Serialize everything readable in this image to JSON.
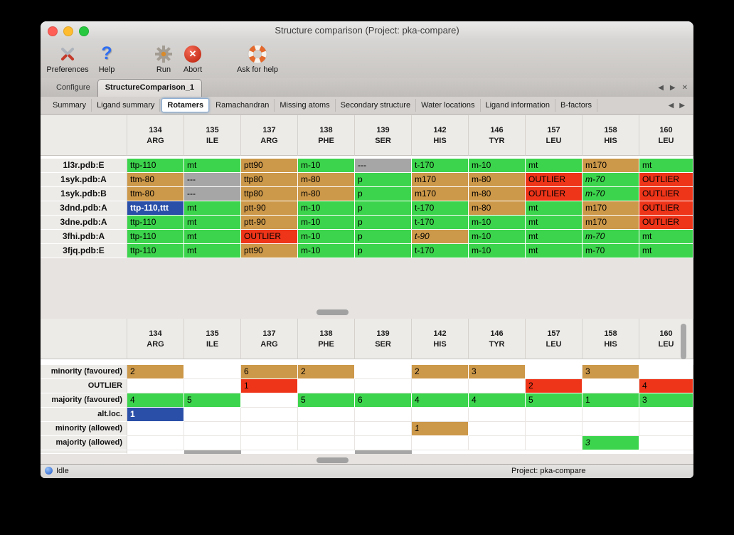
{
  "window": {
    "title": "Structure comparison (Project: pka-compare)",
    "traffic_colors": {
      "close": "#ff5f57",
      "minimize": "#febc2e",
      "zoom": "#28c840"
    }
  },
  "toolbar": [
    {
      "label": "Preferences",
      "name": "preferences",
      "icon": "preferences-tools-icon"
    },
    {
      "label": "Help",
      "name": "help",
      "icon": "help-question-icon"
    },
    {
      "label": "Run",
      "name": "run",
      "icon": "run-gear-icon"
    },
    {
      "label": "Abort",
      "name": "abort",
      "icon": "abort-cross-icon"
    },
    {
      "label": "Ask for help",
      "name": "ask-for-help",
      "icon": "lifebuoy-icon"
    }
  ],
  "tabs": [
    {
      "label": "Configure",
      "active": false
    },
    {
      "label": "StructureComparison_1",
      "active": true
    }
  ],
  "nav": {
    "prev": "◀",
    "next": "▶",
    "close": "✕"
  },
  "subtabs": [
    "Summary",
    "Ligand summary",
    "Rotamers",
    "Ramachandran",
    "Missing atoms",
    "Secondary structure",
    "Water locations",
    "Ligand information",
    "B-factors"
  ],
  "active_subtab": "Rotamers",
  "legend_colors": {
    "majority": "#3cd44c",
    "minority": "#cc9849",
    "outlier": "#ee3419",
    "missing": "#a6a6a6",
    "altloc": "#2a4fa8"
  },
  "columns": [
    [
      "134",
      "ARG"
    ],
    [
      "135",
      "ILE"
    ],
    [
      "137",
      "ARG"
    ],
    [
      "138",
      "PHE"
    ],
    [
      "139",
      "SER"
    ],
    [
      "142",
      "HIS"
    ],
    [
      "146",
      "TYR"
    ],
    [
      "157",
      "LEU"
    ],
    [
      "158",
      "HIS"
    ],
    [
      "160",
      "LEU"
    ]
  ],
  "structures": [
    {
      "name": "1l3r.pdb:E",
      "cells": [
        {
          "t": "ttp-110",
          "c": "majority"
        },
        {
          "t": "mt",
          "c": "majority"
        },
        {
          "t": "ptt90",
          "c": "minority"
        },
        {
          "t": "m-10",
          "c": "majority"
        },
        {
          "t": "---",
          "c": "missing"
        },
        {
          "t": "t-170",
          "c": "majority"
        },
        {
          "t": "m-10",
          "c": "majority"
        },
        {
          "t": "mt",
          "c": "majority"
        },
        {
          "t": "m170",
          "c": "minority"
        },
        {
          "t": "mt",
          "c": "majority"
        }
      ]
    },
    {
      "name": "1syk.pdb:A",
      "cells": [
        {
          "t": "ttm-80",
          "c": "minority"
        },
        {
          "t": "---",
          "c": "missing"
        },
        {
          "t": "ttp80",
          "c": "minority"
        },
        {
          "t": "m-80",
          "c": "minority"
        },
        {
          "t": "p",
          "c": "majority"
        },
        {
          "t": "m170",
          "c": "minority"
        },
        {
          "t": "m-80",
          "c": "minority"
        },
        {
          "t": "OUTLIER",
          "c": "outlier"
        },
        {
          "t": "m-70",
          "c": "majority",
          "i": true
        },
        {
          "t": "OUTLIER",
          "c": "outlier"
        }
      ]
    },
    {
      "name": "1syk.pdb:B",
      "cells": [
        {
          "t": "ttm-80",
          "c": "minority"
        },
        {
          "t": "---",
          "c": "missing"
        },
        {
          "t": "ttp80",
          "c": "minority"
        },
        {
          "t": "m-80",
          "c": "minority"
        },
        {
          "t": "p",
          "c": "majority"
        },
        {
          "t": "m170",
          "c": "minority"
        },
        {
          "t": "m-80",
          "c": "minority"
        },
        {
          "t": "OUTLIER",
          "c": "outlier"
        },
        {
          "t": "m-70",
          "c": "majority",
          "i": true
        },
        {
          "t": "OUTLIER",
          "c": "outlier"
        }
      ]
    },
    {
      "name": "3dnd.pdb:A",
      "cells": [
        {
          "t": "ttp-110,ttt",
          "c": "altloc"
        },
        {
          "t": "mt",
          "c": "majority"
        },
        {
          "t": "ptt-90",
          "c": "minority"
        },
        {
          "t": "m-10",
          "c": "majority"
        },
        {
          "t": "p",
          "c": "majority"
        },
        {
          "t": "t-170",
          "c": "majority"
        },
        {
          "t": "m-80",
          "c": "minority"
        },
        {
          "t": "mt",
          "c": "majority"
        },
        {
          "t": "m170",
          "c": "minority"
        },
        {
          "t": "OUTLIER",
          "c": "outlier"
        }
      ]
    },
    {
      "name": "3dne.pdb:A",
      "cells": [
        {
          "t": "ttp-110",
          "c": "majority"
        },
        {
          "t": "mt",
          "c": "majority"
        },
        {
          "t": "ptt-90",
          "c": "minority"
        },
        {
          "t": "m-10",
          "c": "majority"
        },
        {
          "t": "p",
          "c": "majority"
        },
        {
          "t": "t-170",
          "c": "majority"
        },
        {
          "t": "m-10",
          "c": "majority"
        },
        {
          "t": "mt",
          "c": "majority"
        },
        {
          "t": "m170",
          "c": "minority"
        },
        {
          "t": "OUTLIER",
          "c": "outlier"
        }
      ]
    },
    {
      "name": "3fhi.pdb:A",
      "cells": [
        {
          "t": "ttp-110",
          "c": "majority"
        },
        {
          "t": "mt",
          "c": "majority"
        },
        {
          "t": "OUTLIER",
          "c": "outlier"
        },
        {
          "t": "m-10",
          "c": "majority"
        },
        {
          "t": "p",
          "c": "majority"
        },
        {
          "t": "t-90",
          "c": "minority",
          "i": true
        },
        {
          "t": "m-10",
          "c": "majority"
        },
        {
          "t": "mt",
          "c": "majority"
        },
        {
          "t": "m-70",
          "c": "majority",
          "i": true
        },
        {
          "t": "mt",
          "c": "majority"
        }
      ]
    },
    {
      "name": "3fjq.pdb:E",
      "cells": [
        {
          "t": "ttp-110",
          "c": "majority"
        },
        {
          "t": "mt",
          "c": "majority"
        },
        {
          "t": "ptt90",
          "c": "minority"
        },
        {
          "t": "m-10",
          "c": "majority"
        },
        {
          "t": "p",
          "c": "majority"
        },
        {
          "t": "t-170",
          "c": "majority"
        },
        {
          "t": "m-10",
          "c": "majority"
        },
        {
          "t": "mt",
          "c": "majority"
        },
        {
          "t": "m-70",
          "c": "majority"
        },
        {
          "t": "mt",
          "c": "majority"
        }
      ]
    }
  ],
  "summary": [
    {
      "name": "minority (favoured)",
      "cells": [
        {
          "t": "2",
          "c": "minority"
        },
        null,
        {
          "t": "6",
          "c": "minority"
        },
        {
          "t": "2",
          "c": "minority"
        },
        null,
        {
          "t": "2",
          "c": "minority"
        },
        {
          "t": "3",
          "c": "minority"
        },
        null,
        {
          "t": "3",
          "c": "minority"
        },
        null
      ]
    },
    {
      "name": "OUTLIER",
      "cells": [
        null,
        null,
        {
          "t": "1",
          "c": "outlier"
        },
        null,
        null,
        null,
        null,
        {
          "t": "2",
          "c": "outlier"
        },
        null,
        {
          "t": "4",
          "c": "outlier"
        }
      ]
    },
    {
      "name": "majority (favoured)",
      "cells": [
        {
          "t": "4",
          "c": "majority"
        },
        {
          "t": "5",
          "c": "majority"
        },
        null,
        {
          "t": "5",
          "c": "majority"
        },
        {
          "t": "6",
          "c": "majority"
        },
        {
          "t": "4",
          "c": "majority"
        },
        {
          "t": "4",
          "c": "majority"
        },
        {
          "t": "5",
          "c": "majority"
        },
        {
          "t": "1",
          "c": "majority"
        },
        {
          "t": "3",
          "c": "majority"
        }
      ]
    },
    {
      "name": "alt.loc.",
      "cells": [
        {
          "t": "1",
          "c": "altloc"
        },
        null,
        null,
        null,
        null,
        null,
        null,
        null,
        null,
        null
      ]
    },
    {
      "name": "minority (allowed)",
      "cells": [
        null,
        null,
        null,
        null,
        null,
        {
          "t": "1",
          "c": "minority",
          "i": true
        },
        null,
        null,
        null,
        null
      ]
    },
    {
      "name": "majority (allowed)",
      "cells": [
        null,
        null,
        null,
        null,
        null,
        null,
        null,
        null,
        {
          "t": "3",
          "c": "majority",
          "i": true
        },
        null
      ]
    }
  ],
  "partial_missing_cols": [
    1,
    4
  ],
  "statusbar": {
    "status": "Idle",
    "project": "Project: pka-compare"
  }
}
